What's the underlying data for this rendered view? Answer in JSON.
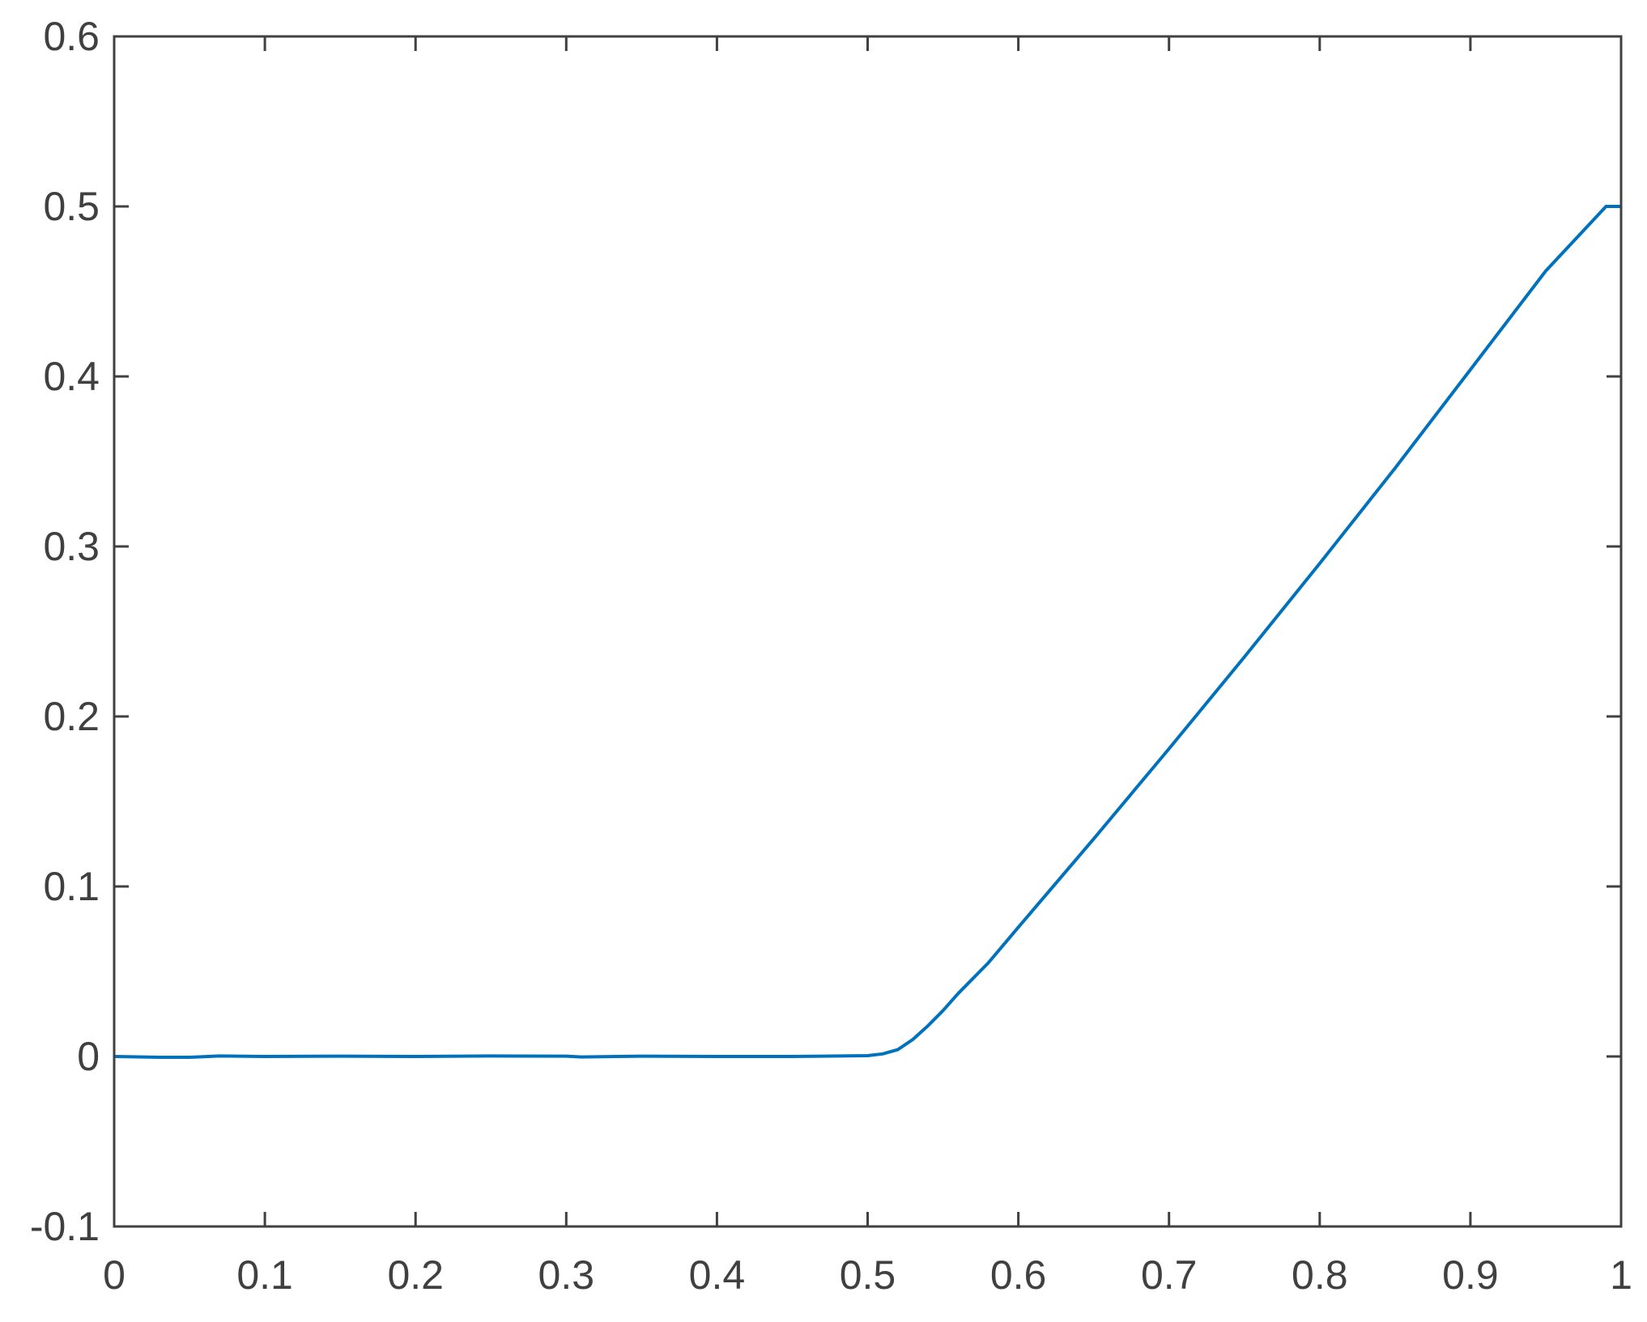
{
  "chart_data": {
    "type": "line",
    "title": "",
    "xlabel": "",
    "ylabel": "",
    "xlim": [
      0,
      1
    ],
    "ylim": [
      -0.1,
      0.6
    ],
    "xticks": [
      "0",
      "0.1",
      "0.2",
      "0.3",
      "0.4",
      "0.5",
      "0.6",
      "0.7",
      "0.8",
      "0.9",
      "1"
    ],
    "yticks": [
      "-0.1",
      "0",
      "0.1",
      "0.2",
      "0.3",
      "0.4",
      "0.5",
      "0.6"
    ],
    "grid": false,
    "line_color": "#0072BD",
    "axis_color": "#404040",
    "series": [
      {
        "x": [
          0,
          0.03,
          0.05,
          0.07,
          0.1,
          0.15,
          0.2,
          0.25,
          0.3,
          0.31,
          0.35,
          0.4,
          0.45,
          0.5,
          0.51,
          0.52,
          0.53,
          0.54,
          0.55,
          0.56,
          0.58,
          0.6,
          0.65,
          0.7,
          0.75,
          0.8,
          0.85,
          0.9,
          0.95,
          0.99,
          1.0
        ],
        "y": [
          0,
          -0.0005,
          -0.0005,
          0.0003,
          0,
          0.0002,
          0,
          0.0003,
          0.0002,
          -0.0003,
          0.0002,
          0,
          0,
          0.0005,
          0.0015,
          0.004,
          0.01,
          0.018,
          0.027,
          0.037,
          0.055,
          0.076,
          0.128,
          0.181,
          0.235,
          0.29,
          0.346,
          0.404,
          0.462,
          0.5,
          0.5
        ]
      }
    ]
  }
}
